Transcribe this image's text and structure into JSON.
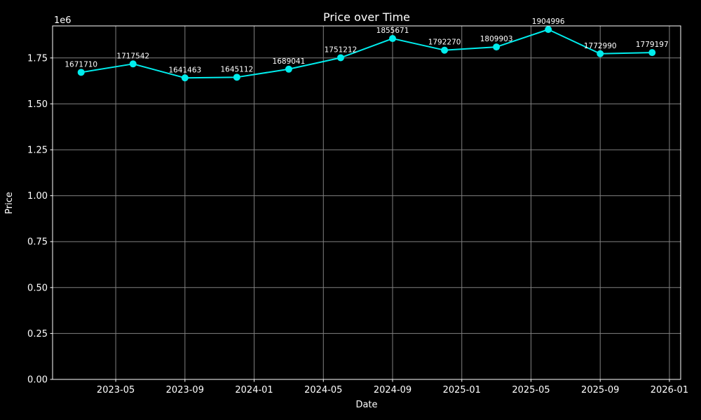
{
  "chart_data": {
    "type": "line",
    "title": "Price over Time",
    "xlabel": "Date",
    "ylabel": "Price",
    "y_offset_text": "1e6",
    "background_color": "#000000",
    "text_color": "#ffffff",
    "grid_color": "#808080",
    "spine_color": "#ffffff",
    "grid": true,
    "legend": false,
    "series": [
      {
        "name": "Price",
        "color": "#00eded",
        "marker": "circle",
        "x": [
          "2023-03",
          "2023-06",
          "2023-09",
          "2023-12",
          "2024-03",
          "2024-06",
          "2024-09",
          "2024-12",
          "2025-03",
          "2025-06",
          "2025-09",
          "2025-12"
        ],
        "values": [
          1671710,
          1717542,
          1641463,
          1645112,
          1689041,
          1751212,
          1855671,
          1792270,
          1809903,
          1904996,
          1772990,
          1779197
        ],
        "point_labels": [
          "1671710",
          "1717542",
          "1641463",
          "1645112",
          "1689041",
          "1751212",
          "1855671",
          "1792270",
          "1809903",
          "1904996",
          "1772990",
          "1779197"
        ]
      }
    ],
    "x_ticks": [
      "2023-05",
      "2023-09",
      "2024-01",
      "2024-05",
      "2024-09",
      "2025-01",
      "2025-05",
      "2025-09",
      "2026-01"
    ],
    "y_ticks": [
      "0.00",
      "0.25",
      "0.50",
      "0.75",
      "1.00",
      "1.25",
      "1.50",
      "1.75"
    ],
    "y_tick_scale": 1000000,
    "ylim": [
      0,
      1924500
    ],
    "xlim_months_since_2023_01": [
      0.35,
      36.65
    ]
  }
}
